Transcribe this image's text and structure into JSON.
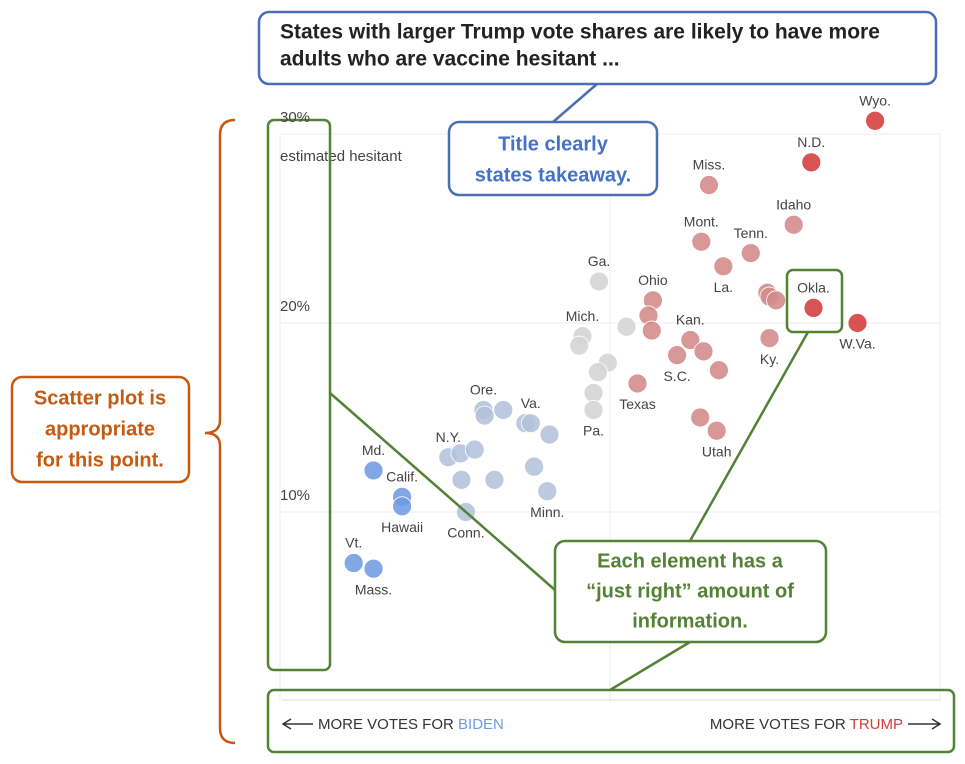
{
  "chart_data": {
    "type": "scatter",
    "title": [
      "States with larger Trump vote shares are likely to have more",
      "adults who are vaccine hesitant ..."
    ],
    "ylabel": "estimated hesitant",
    "xlabel_left": [
      "MORE VOTES FOR",
      "BIDEN"
    ],
    "xlabel_right": [
      "MORE VOTES FOR",
      "TRUMP"
    ],
    "xlim": [
      20,
      80
    ],
    "ylim": [
      0,
      30
    ],
    "xticks": [
      20,
      50,
      80
    ],
    "yticks": [
      {
        "value": 10,
        "label": "10%"
      },
      {
        "value": 20,
        "label": "20%"
      },
      {
        "value": 30,
        "label": "30%"
      }
    ],
    "grid": true,
    "series": [
      {
        "color": "#6f9be0",
        "x": [
          26.7,
          28.5,
          28.5,
          31.1,
          31.1
        ],
        "values": [
          7.3,
          7.0,
          12.2,
          10.8,
          10.3
        ],
        "labels": [
          "Vt.",
          "Mass.",
          "Md.",
          "Calif.",
          "Hawaii"
        ]
      },
      {
        "color": "#b3c1d9",
        "x": [
          35.3,
          36.4,
          37.7,
          36.5,
          36.9,
          38.5,
          38.6,
          40.3,
          39.5,
          42.3,
          42.8,
          44.5,
          43.1,
          44.3
        ],
        "values": [
          12.9,
          13.1,
          13.3,
          11.7,
          10.0,
          15.4,
          15.1,
          15.4,
          11.7,
          14.7,
          14.7,
          14.1,
          12.4,
          11.1
        ],
        "labels": [
          "N.Y.",
          null,
          null,
          null,
          "Conn.",
          "Ore.",
          null,
          null,
          null,
          null,
          "Va.",
          null,
          null,
          "Minn."
        ]
      },
      {
        "color": "#d4d4d4",
        "x": [
          49.0,
          47.5,
          47.2,
          49.8,
          48.9,
          51.5,
          48.5,
          48.5
        ],
        "values": [
          22.2,
          19.3,
          18.8,
          17.9,
          17.4,
          19.8,
          16.3,
          15.4
        ],
        "labels": [
          "Ga.",
          "Mich.",
          null,
          null,
          null,
          null,
          null,
          "Pa."
        ]
      },
      {
        "color": "#d48a8a",
        "x": [
          59.0,
          58.3,
          62.8,
          66.7,
          60.3,
          53.9,
          53.5,
          53.8,
          57.3,
          58.5,
          56.1,
          59.9,
          52.5,
          58.2,
          59.7,
          64.3,
          64.5,
          65.1,
          64.5
        ],
        "values": [
          27.3,
          24.3,
          23.7,
          25.2,
          23.0,
          21.2,
          20.4,
          19.6,
          19.1,
          18.5,
          18.3,
          17.5,
          16.8,
          15.0,
          14.3,
          21.6,
          21.4,
          21.2,
          19.2
        ],
        "labels": [
          "Miss.",
          "Mont.",
          "Tenn.",
          "Idaho",
          "La.",
          "Ohio",
          null,
          null,
          "Kan.",
          null,
          "S.C.",
          null,
          "Texas",
          null,
          "Utah",
          null,
          null,
          null,
          "Ky."
        ]
      },
      {
        "color": "#d43b3b",
        "x": [
          68.3,
          68.5,
          72.5,
          74.1
        ],
        "values": [
          28.5,
          20.8,
          20.0,
          30.7
        ],
        "labels": [
          "N.D.",
          "Okla.",
          "W.Va.",
          "Wyo."
        ]
      }
    ]
  },
  "annotations": {
    "title_callout": [
      "Title clearly",
      "states takeaway."
    ],
    "type_callout": [
      "Scatter plot is",
      "appropriate",
      "for this point."
    ],
    "element_callout": [
      "Each element has a",
      "“just right” amount of",
      "information."
    ]
  }
}
